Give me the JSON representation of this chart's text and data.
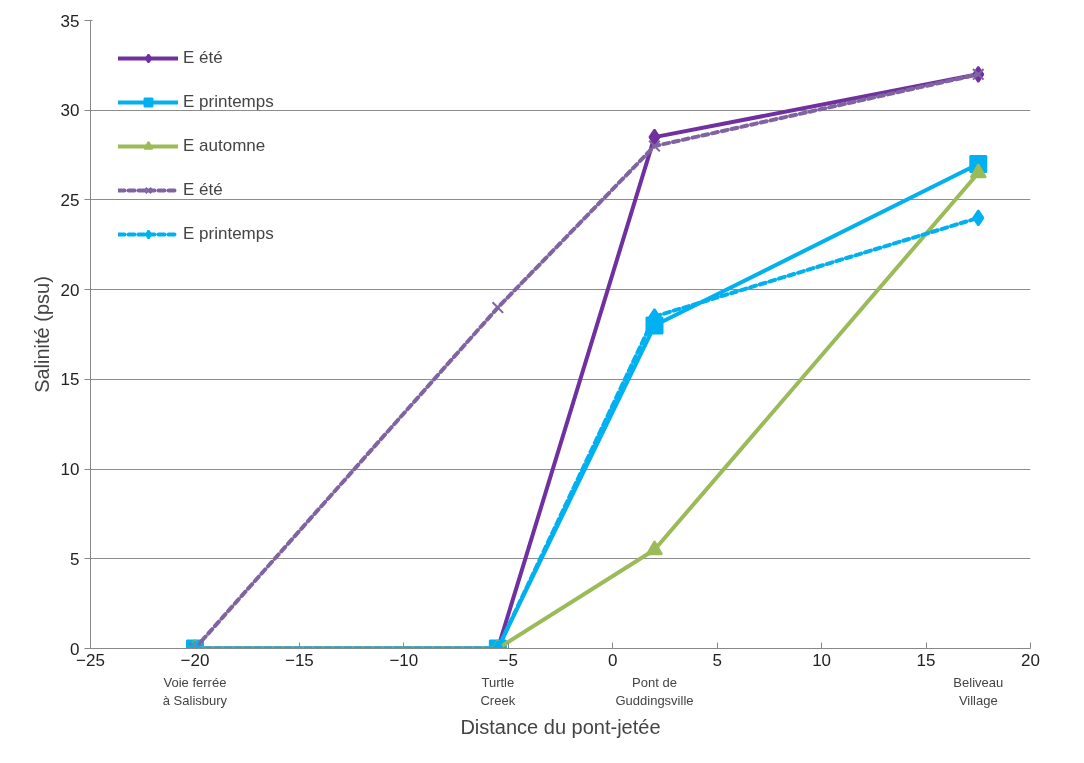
{
  "chart_data": {
    "type": "line",
    "xlabel": "Distance du pont-jetée",
    "ylabel": "Salinité (psu)",
    "x": [
      -20,
      -5.5,
      2,
      17.5
    ],
    "xlim": [
      -25,
      20
    ],
    "xticks": [
      -25,
      -20,
      -15,
      -10,
      -5,
      0,
      5,
      10,
      15,
      20
    ],
    "ylim": [
      0,
      35
    ],
    "yticks": [
      0,
      5,
      10,
      15,
      20,
      25,
      30,
      35
    ],
    "grid": "y",
    "legend": "top left",
    "series": [
      {
        "name": "E été",
        "color": "#7030a0",
        "marker": "diamond",
        "line_style": "solid",
        "values": [
          0,
          0,
          28.5,
          32
        ]
      },
      {
        "name": "E printemps",
        "color": "#00b0f0",
        "marker": "square",
        "line_style": "solid",
        "values": [
          0,
          0,
          18,
          27
        ]
      },
      {
        "name": "E automne",
        "color": "#9bbb59",
        "marker": "triangle",
        "line_style": "solid",
        "values": [
          0,
          0,
          5.5,
          26.5
        ]
      },
      {
        "name": "E été",
        "color": "#8064a2",
        "marker": "cross",
        "line_style": "dashed",
        "values": [
          0,
          19,
          28,
          32
        ]
      },
      {
        "name": "E printemps",
        "color": "#00b0f0",
        "marker": "diamond",
        "line_style": "dashed",
        "values": [
          0,
          0,
          18.5,
          24
        ]
      }
    ],
    "annotations": [
      "Voie ferrée\nà Salisbury",
      "Turtle\nCreek",
      "Pont de\nGuddingsville",
      "Beliveau\nVillage"
    ]
  }
}
